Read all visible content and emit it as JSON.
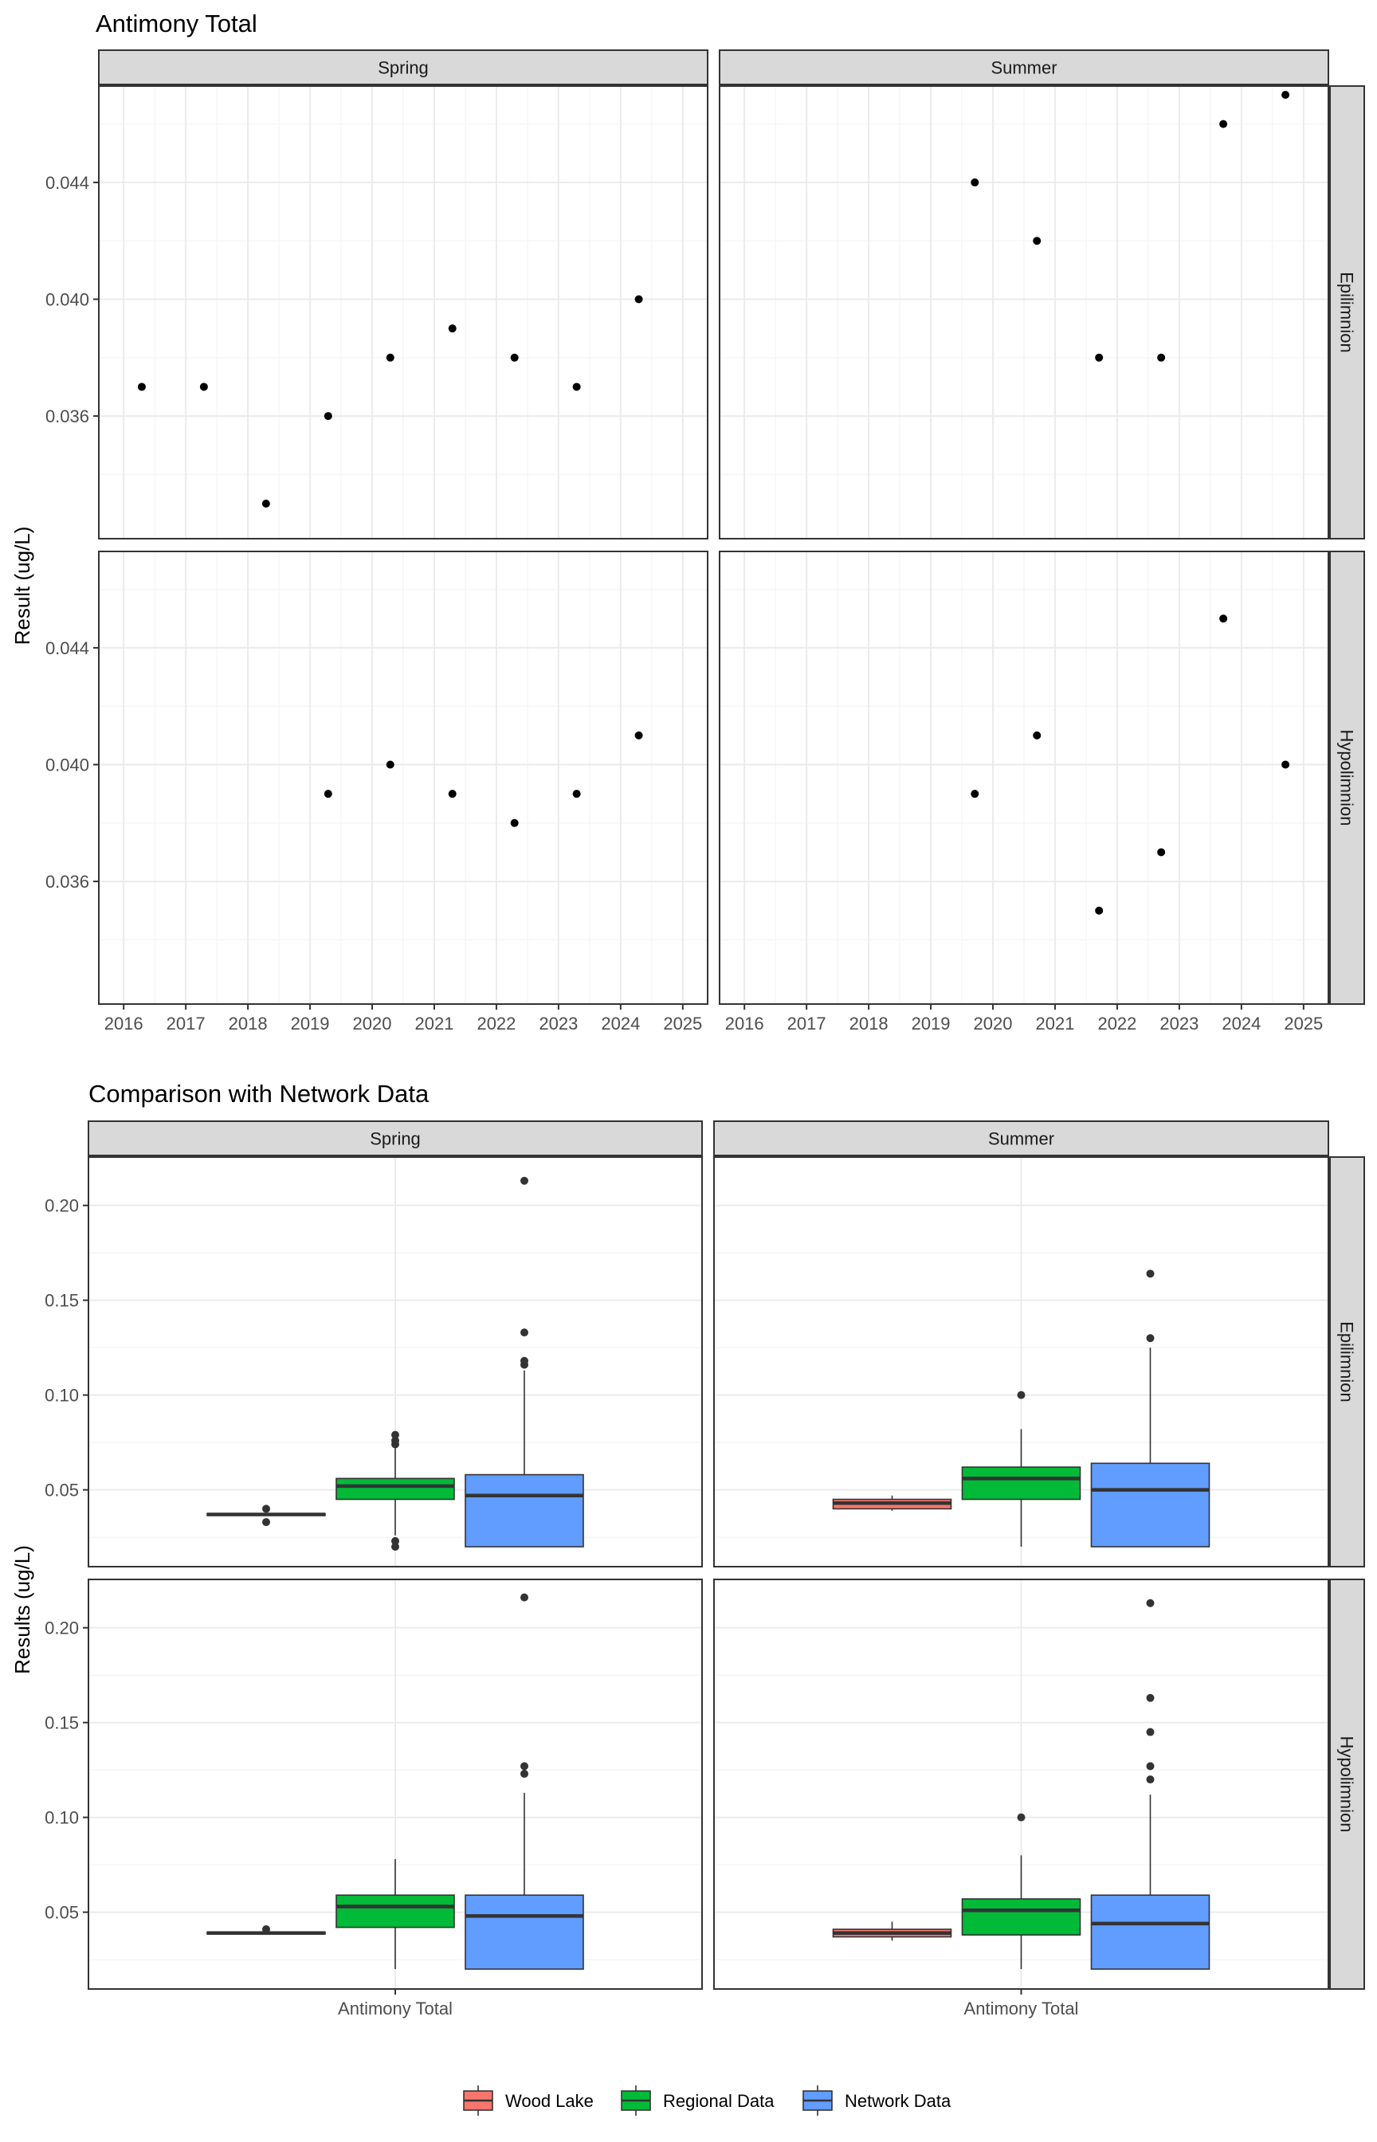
{
  "chart_data": [
    {
      "type": "scatter",
      "title": "Antimony Total",
      "ylabel": "Result (ug/L)",
      "xlabel": "",
      "columns": [
        "Spring",
        "Summer"
      ],
      "rows": [
        "Epilimnion",
        "Hypolimnion"
      ],
      "x_ticks": [
        "2016",
        "2017",
        "2018",
        "2019",
        "2020",
        "2021",
        "2022",
        "2023",
        "2024",
        "2025"
      ],
      "xlim": [
        2015.6,
        2025.4
      ],
      "y_ticks": [
        "0.036",
        "0.040",
        "0.044"
      ],
      "ylim": [
        0.0318,
        0.0473
      ],
      "grid": true,
      "panels": [
        {
          "column": "Spring",
          "row": "Epilimnion",
          "points": [
            {
              "x": "2016-04",
              "y": 0.037
            },
            {
              "x": "2017-04",
              "y": 0.037
            },
            {
              "x": "2018-04",
              "y": 0.033
            },
            {
              "x": "2019-04",
              "y": 0.036
            },
            {
              "x": "2020-04",
              "y": 0.038
            },
            {
              "x": "2021-04",
              "y": 0.039
            },
            {
              "x": "2022-04",
              "y": 0.038
            },
            {
              "x": "2023-04",
              "y": 0.037
            },
            {
              "x": "2024-04",
              "y": 0.04
            }
          ]
        },
        {
          "column": "Summer",
          "row": "Epilimnion",
          "points": [
            {
              "x": "2019-09",
              "y": 0.044
            },
            {
              "x": "2020-09",
              "y": 0.042
            },
            {
              "x": "2021-09",
              "y": 0.038
            },
            {
              "x": "2022-09",
              "y": 0.038
            },
            {
              "x": "2023-09",
              "y": 0.046
            },
            {
              "x": "2024-09",
              "y": 0.047
            }
          ]
        },
        {
          "column": "Spring",
          "row": "Hypolimnion",
          "points": [
            {
              "x": "2019-04",
              "y": 0.039
            },
            {
              "x": "2020-04",
              "y": 0.04
            },
            {
              "x": "2021-04",
              "y": 0.039
            },
            {
              "x": "2022-04",
              "y": 0.038
            },
            {
              "x": "2023-04",
              "y": 0.039
            },
            {
              "x": "2024-04",
              "y": 0.041
            }
          ]
        },
        {
          "column": "Summer",
          "row": "Hypolimnion",
          "points": [
            {
              "x": "2019-09",
              "y": 0.039
            },
            {
              "x": "2020-09",
              "y": 0.041
            },
            {
              "x": "2021-09",
              "y": 0.035
            },
            {
              "x": "2022-09",
              "y": 0.037
            },
            {
              "x": "2023-09",
              "y": 0.045
            },
            {
              "x": "2024-09",
              "y": 0.04
            }
          ]
        }
      ]
    },
    {
      "type": "box",
      "title": "Comparison with Network Data",
      "ylabel": "Results (ug/L)",
      "xlabel": "",
      "columns": [
        "Spring",
        "Summer"
      ],
      "rows": [
        "Epilimnion",
        "Hypolimnion"
      ],
      "category": "Antimony Total",
      "y_ticks": [
        "0.05",
        "0.10",
        "0.15",
        "0.20"
      ],
      "ylim": [
        0.0095,
        0.2255
      ],
      "grid": true,
      "legend_position": "bottom",
      "legend": [
        {
          "name": "Wood Lake",
          "color": "#f8766d"
        },
        {
          "name": "Regional Data",
          "color": "#00ba38"
        },
        {
          "name": "Network Data",
          "color": "#619cff"
        }
      ],
      "panels": [
        {
          "column": "Spring",
          "row": "Epilimnion",
          "boxes": [
            {
              "series": "Wood Lake",
              "whisker_low": 0.0365,
              "q1": 0.0365,
              "median": 0.037,
              "q3": 0.0375,
              "whisker_high": 0.0375,
              "outliers": [
                0.033,
                0.04
              ]
            },
            {
              "series": "Regional Data",
              "whisker_low": 0.026,
              "q1": 0.045,
              "median": 0.052,
              "q3": 0.056,
              "whisker_high": 0.072,
              "outliers": [
                0.02,
                0.023,
                0.074,
                0.076,
                0.079
              ]
            },
            {
              "series": "Network Data",
              "whisker_low": 0.02,
              "q1": 0.02,
              "median": 0.047,
              "q3": 0.058,
              "whisker_high": 0.113,
              "outliers": [
                0.116,
                0.118,
                0.133,
                0.213
              ]
            }
          ]
        },
        {
          "column": "Summer",
          "row": "Epilimnion",
          "boxes": [
            {
              "series": "Wood Lake",
              "whisker_low": 0.039,
              "q1": 0.04,
              "median": 0.043,
              "q3": 0.045,
              "whisker_high": 0.047,
              "outliers": []
            },
            {
              "series": "Regional Data",
              "whisker_low": 0.02,
              "q1": 0.045,
              "median": 0.056,
              "q3": 0.062,
              "whisker_high": 0.082,
              "outliers": [
                0.1
              ]
            },
            {
              "series": "Network Data",
              "whisker_low": 0.02,
              "q1": 0.02,
              "median": 0.05,
              "q3": 0.064,
              "whisker_high": 0.125,
              "outliers": [
                0.13,
                0.164
              ]
            }
          ]
        },
        {
          "column": "Spring",
          "row": "Hypolimnion",
          "boxes": [
            {
              "series": "Wood Lake",
              "whisker_low": 0.038,
              "q1": 0.0385,
              "median": 0.039,
              "q3": 0.0395,
              "whisker_high": 0.04,
              "outliers": [
                0.041
              ]
            },
            {
              "series": "Regional Data",
              "whisker_low": 0.02,
              "q1": 0.042,
              "median": 0.053,
              "q3": 0.059,
              "whisker_high": 0.078,
              "outliers": []
            },
            {
              "series": "Network Data",
              "whisker_low": 0.02,
              "q1": 0.02,
              "median": 0.048,
              "q3": 0.059,
              "whisker_high": 0.113,
              "outliers": [
                0.123,
                0.127,
                0.216
              ]
            }
          ]
        },
        {
          "column": "Summer",
          "row": "Hypolimnion",
          "boxes": [
            {
              "series": "Wood Lake",
              "whisker_low": 0.035,
              "q1": 0.037,
              "median": 0.039,
              "q3": 0.041,
              "whisker_high": 0.045,
              "outliers": []
            },
            {
              "series": "Regional Data",
              "whisker_low": 0.02,
              "q1": 0.038,
              "median": 0.051,
              "q3": 0.057,
              "whisker_high": 0.08,
              "outliers": [
                0.1
              ]
            },
            {
              "series": "Network Data",
              "whisker_low": 0.02,
              "q1": 0.02,
              "median": 0.044,
              "q3": 0.059,
              "whisker_high": 0.112,
              "outliers": [
                0.12,
                0.127,
                0.145,
                0.163,
                0.213
              ]
            }
          ]
        }
      ]
    }
  ]
}
